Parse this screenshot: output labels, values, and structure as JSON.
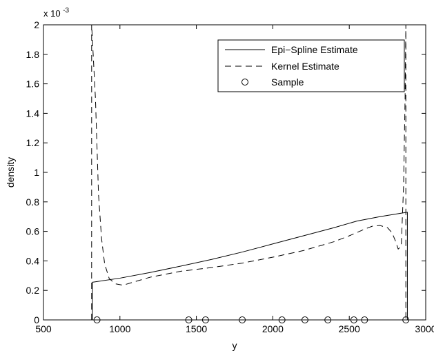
{
  "chart_data": {
    "type": "line",
    "xlabel": "y",
    "ylabel": "density",
    "y_exponent_label": "x 10",
    "y_exponent_power": "-3",
    "xlim": [
      500,
      3000
    ],
    "ylim": [
      0,
      2
    ],
    "x_ticks": [
      500,
      1000,
      1500,
      2000,
      2500,
      3000
    ],
    "x_tick_labels": [
      "500",
      "1000",
      "1500",
      "2000",
      "2500",
      "3000"
    ],
    "y_ticks": [
      0,
      0.2,
      0.4,
      0.6,
      0.8,
      1,
      1.2,
      1.4,
      1.6,
      1.8,
      2
    ],
    "y_tick_labels": [
      "0",
      "0.2",
      "0.4",
      "0.6",
      "0.8",
      "1",
      "1.2",
      "1.4",
      "1.6",
      "1.8",
      "2"
    ],
    "grid": false,
    "legend_position": "top-right",
    "series": [
      {
        "name": "Epi−Spline Estimate",
        "style": "solid",
        "color": "#000000",
        "x": [
          820,
          820,
          1000,
          1200,
          1400,
          1600,
          1800,
          2000,
          2200,
          2400,
          2550,
          2700,
          2880,
          2880
        ],
        "y": [
          0,
          0.255,
          0.283,
          0.322,
          0.365,
          0.41,
          0.46,
          0.515,
          0.57,
          0.625,
          0.67,
          0.7,
          0.73,
          0
        ]
      },
      {
        "name": "Kernel Estimate",
        "style": "dashed",
        "color": "#000000",
        "x": [
          815,
          815,
          840,
          860,
          880,
          900,
          930,
          970,
          1020,
          1100,
          1200,
          1400,
          1600,
          1800,
          2000,
          2200,
          2400,
          2500,
          2600,
          2650,
          2700,
          2750,
          2780,
          2800,
          2820,
          2840,
          2855,
          2865,
          2870,
          2870
        ],
        "y": [
          0,
          2,
          1.5,
          0.85,
          0.55,
          0.38,
          0.28,
          0.245,
          0.235,
          0.26,
          0.29,
          0.33,
          0.355,
          0.385,
          0.425,
          0.47,
          0.53,
          0.57,
          0.615,
          0.635,
          0.64,
          0.625,
          0.59,
          0.54,
          0.48,
          0.5,
          0.9,
          1.5,
          2,
          0
        ]
      },
      {
        "name": "Sample",
        "style": "marker-circle",
        "color": "#000000",
        "x": [
          850,
          1450,
          1560,
          1800,
          2060,
          2210,
          2360,
          2530,
          2600,
          2870
        ],
        "y": [
          0,
          0,
          0,
          0,
          0,
          0,
          0,
          0,
          0,
          0
        ]
      }
    ]
  }
}
